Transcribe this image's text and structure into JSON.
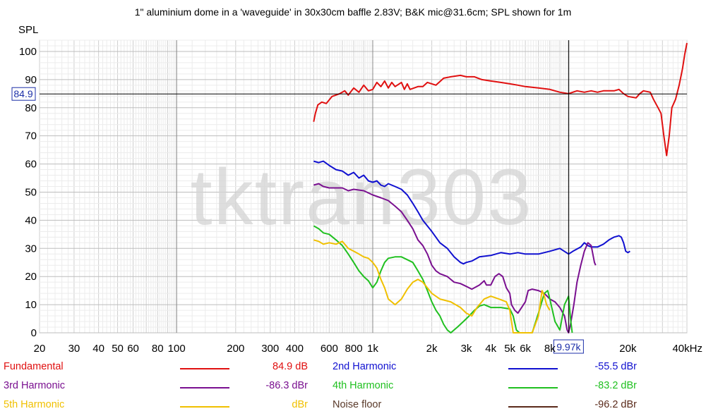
{
  "chart_data": {
    "type": "line",
    "title": "1\" aluminium dome in a 'waveguide' in 30x30cm baffle 2.83V; B&K mic@31.6cm; SPL shown for 1m",
    "ylabel": "SPL",
    "xlabel_unit": "kHz",
    "x_scale": "log",
    "xlim": [
      20,
      40000
    ],
    "ylim": [
      0,
      100
    ],
    "x_ticks": [
      {
        "v": 20,
        "t": "20"
      },
      {
        "v": 30,
        "t": "30"
      },
      {
        "v": 40,
        "t": "40"
      },
      {
        "v": 50,
        "t": "50"
      },
      {
        "v": 60,
        "t": "60"
      },
      {
        "v": 80,
        "t": "80"
      },
      {
        "v": 100,
        "t": "100"
      },
      {
        "v": 200,
        "t": "200"
      },
      {
        "v": 300,
        "t": "300"
      },
      {
        "v": 400,
        "t": "400"
      },
      {
        "v": 600,
        "t": "600"
      },
      {
        "v": 800,
        "t": "800"
      },
      {
        "v": 1000,
        "t": "1k"
      },
      {
        "v": 2000,
        "t": "2k"
      },
      {
        "v": 3000,
        "t": "3k"
      },
      {
        "v": 4000,
        "t": "4k"
      },
      {
        "v": 5000,
        "t": "5k"
      },
      {
        "v": 6000,
        "t": "6k"
      },
      {
        "v": 8000,
        "t": "8k"
      },
      {
        "v": 20000,
        "t": "20k"
      },
      {
        "v": 40000,
        "t": "40kHz"
      }
    ],
    "y_ticks": [
      0,
      10,
      20,
      30,
      40,
      50,
      60,
      70,
      80,
      90,
      100
    ],
    "grid": true,
    "watermark": "tktran303",
    "cursor": {
      "x": 9970,
      "y": 84.9,
      "x_label": "9.97k",
      "y_label": "84.9"
    },
    "series": [
      {
        "name": "Fundamental",
        "color": "#e01010",
        "value": "84.9 dB",
        "points": [
          [
            500,
            75
          ],
          [
            510,
            78
          ],
          [
            525,
            81
          ],
          [
            550,
            82
          ],
          [
            580,
            81.5
          ],
          [
            620,
            84
          ],
          [
            680,
            85
          ],
          [
            720,
            86
          ],
          [
            750,
            84.5
          ],
          [
            800,
            87
          ],
          [
            850,
            85.5
          ],
          [
            900,
            88
          ],
          [
            950,
            86
          ],
          [
            1000,
            86.5
          ],
          [
            1050,
            89
          ],
          [
            1100,
            87.5
          ],
          [
            1150,
            89.5
          ],
          [
            1200,
            87
          ],
          [
            1250,
            89
          ],
          [
            1300,
            87.5
          ],
          [
            1400,
            89
          ],
          [
            1450,
            86.5
          ],
          [
            1500,
            88.5
          ],
          [
            1550,
            86.5
          ],
          [
            1700,
            87.5
          ],
          [
            1800,
            87.5
          ],
          [
            1900,
            89
          ],
          [
            2100,
            88
          ],
          [
            2300,
            90.5
          ],
          [
            2500,
            91
          ],
          [
            2800,
            91.5
          ],
          [
            3000,
            91
          ],
          [
            3300,
            91
          ],
          [
            3600,
            90
          ],
          [
            4000,
            89.5
          ],
          [
            4500,
            89
          ],
          [
            5000,
            88.5
          ],
          [
            5500,
            88
          ],
          [
            6000,
            87.5
          ],
          [
            7000,
            87
          ],
          [
            8000,
            86.5
          ],
          [
            9000,
            85.5
          ],
          [
            9970,
            85
          ],
          [
            11000,
            86
          ],
          [
            12000,
            85.5
          ],
          [
            13000,
            86
          ],
          [
            14000,
            85.5
          ],
          [
            15000,
            86
          ],
          [
            17000,
            86
          ],
          [
            18000,
            86.5
          ],
          [
            19000,
            85
          ],
          [
            20000,
            84
          ],
          [
            22000,
            83.5
          ],
          [
            23000,
            85
          ],
          [
            24000,
            86
          ],
          [
            26000,
            85.5
          ],
          [
            27000,
            83
          ],
          [
            28500,
            80
          ],
          [
            29500,
            78
          ],
          [
            30500,
            70
          ],
          [
            31500,
            63
          ],
          [
            32500,
            70
          ],
          [
            33500,
            80
          ],
          [
            35000,
            83
          ],
          [
            36500,
            88
          ],
          [
            38000,
            94
          ],
          [
            39000,
            99
          ],
          [
            40000,
            103
          ]
        ]
      },
      {
        "name": "2nd Harmonic",
        "color": "#1010d0",
        "value": "-55.5 dBr",
        "points": [
          [
            500,
            61
          ],
          [
            530,
            60.5
          ],
          [
            560,
            61
          ],
          [
            600,
            59.5
          ],
          [
            650,
            58
          ],
          [
            700,
            57.5
          ],
          [
            750,
            56
          ],
          [
            800,
            57
          ],
          [
            850,
            55
          ],
          [
            900,
            56
          ],
          [
            950,
            54
          ],
          [
            1000,
            53.5
          ],
          [
            1050,
            54
          ],
          [
            1100,
            52.5
          ],
          [
            1150,
            52
          ],
          [
            1200,
            53
          ],
          [
            1300,
            52
          ],
          [
            1400,
            51
          ],
          [
            1500,
            49
          ],
          [
            1600,
            46
          ],
          [
            1700,
            43
          ],
          [
            1800,
            40
          ],
          [
            2000,
            36
          ],
          [
            2200,
            32
          ],
          [
            2400,
            30
          ],
          [
            2600,
            27
          ],
          [
            2800,
            25
          ],
          [
            2900,
            24.5
          ],
          [
            3000,
            25
          ],
          [
            3200,
            25.5
          ],
          [
            3500,
            27
          ],
          [
            4000,
            27.5
          ],
          [
            4500,
            28.5
          ],
          [
            5000,
            28
          ],
          [
            5500,
            28.5
          ],
          [
            6000,
            28
          ],
          [
            7000,
            28
          ],
          [
            8000,
            29
          ],
          [
            9000,
            30
          ],
          [
            9970,
            28
          ],
          [
            10500,
            29
          ],
          [
            11500,
            30.5
          ],
          [
            12000,
            32
          ],
          [
            12500,
            31
          ],
          [
            13000,
            30.5
          ],
          [
            14000,
            30.5
          ],
          [
            15000,
            31.5
          ],
          [
            16000,
            33
          ],
          [
            17000,
            34
          ],
          [
            18000,
            34.5
          ],
          [
            18500,
            34
          ],
          [
            19000,
            32
          ],
          [
            19500,
            29
          ],
          [
            20000,
            28.5
          ],
          [
            20500,
            29
          ]
        ]
      },
      {
        "name": "3rd Harmonic",
        "color": "#7a1090",
        "value": "-86.3 dBr",
        "points": [
          [
            500,
            52.5
          ],
          [
            530,
            53
          ],
          [
            560,
            52
          ],
          [
            600,
            51.5
          ],
          [
            700,
            51.5
          ],
          [
            750,
            50.5
          ],
          [
            800,
            51
          ],
          [
            900,
            50.5
          ],
          [
            1000,
            49
          ],
          [
            1100,
            48
          ],
          [
            1200,
            47
          ],
          [
            1300,
            45
          ],
          [
            1400,
            43
          ],
          [
            1500,
            40
          ],
          [
            1600,
            37
          ],
          [
            1700,
            33
          ],
          [
            1800,
            31
          ],
          [
            1900,
            28
          ],
          [
            2000,
            24
          ],
          [
            2100,
            22
          ],
          [
            2200,
            21
          ],
          [
            2400,
            20
          ],
          [
            2600,
            18
          ],
          [
            2800,
            17.5
          ],
          [
            3000,
            16.5
          ],
          [
            3200,
            15.5
          ],
          [
            3500,
            17
          ],
          [
            3700,
            18.5
          ],
          [
            3800,
            17
          ],
          [
            4000,
            17
          ],
          [
            4200,
            20
          ],
          [
            4400,
            21
          ],
          [
            4600,
            20
          ],
          [
            4800,
            16
          ],
          [
            5000,
            14
          ],
          [
            5100,
            10
          ],
          [
            5300,
            8
          ],
          [
            5500,
            7
          ],
          [
            6000,
            11
          ],
          [
            6200,
            15
          ],
          [
            6500,
            15.5
          ],
          [
            7000,
            15
          ],
          [
            7500,
            14
          ],
          [
            8000,
            12
          ],
          [
            8500,
            11
          ],
          [
            9000,
            9
          ],
          [
            9500,
            6
          ],
          [
            9800,
            1
          ],
          [
            9970,
            0
          ],
          [
            10200,
            3
          ],
          [
            10600,
            10
          ],
          [
            11000,
            18
          ],
          [
            11500,
            24
          ],
          [
            12000,
            29
          ],
          [
            12500,
            32
          ],
          [
            13000,
            31
          ],
          [
            13500,
            25
          ],
          [
            13700,
            24
          ]
        ]
      },
      {
        "name": "4th Harmonic",
        "color": "#20c020",
        "value": "-83.2 dBr",
        "points": [
          [
            500,
            38
          ],
          [
            530,
            37
          ],
          [
            560,
            35.5
          ],
          [
            600,
            35
          ],
          [
            650,
            33
          ],
          [
            700,
            31
          ],
          [
            750,
            28
          ],
          [
            800,
            25
          ],
          [
            850,
            22
          ],
          [
            900,
            20
          ],
          [
            950,
            18.5
          ],
          [
            1000,
            16
          ],
          [
            1050,
            18
          ],
          [
            1100,
            22
          ],
          [
            1150,
            25
          ],
          [
            1200,
            26.5
          ],
          [
            1300,
            27
          ],
          [
            1400,
            27
          ],
          [
            1500,
            26
          ],
          [
            1600,
            25
          ],
          [
            1700,
            22
          ],
          [
            1800,
            19
          ],
          [
            1900,
            15
          ],
          [
            2000,
            11
          ],
          [
            2100,
            8
          ],
          [
            2200,
            6
          ],
          [
            2300,
            3
          ],
          [
            2400,
            1
          ],
          [
            2500,
            0
          ],
          [
            2700,
            2
          ],
          [
            2900,
            4
          ],
          [
            3100,
            6
          ],
          [
            3300,
            8
          ],
          [
            3500,
            9.5
          ],
          [
            3700,
            10
          ],
          [
            4000,
            9
          ],
          [
            4500,
            9
          ],
          [
            5000,
            8.5
          ],
          [
            5200,
            6
          ],
          [
            5400,
            1
          ],
          [
            5600,
            0
          ],
          [
            6500,
            0
          ],
          [
            7000,
            7
          ],
          [
            7500,
            14
          ],
          [
            7800,
            15
          ],
          [
            8000,
            12
          ],
          [
            8500,
            4
          ],
          [
            9000,
            1
          ],
          [
            9500,
            10
          ],
          [
            9970,
            13
          ],
          [
            10200,
            5
          ],
          [
            10400,
            0
          ]
        ]
      },
      {
        "name": "5th Harmonic",
        "color": "#f0c000",
        "value": "dBr",
        "points": [
          [
            500,
            33
          ],
          [
            530,
            32.5
          ],
          [
            560,
            31.5
          ],
          [
            600,
            32
          ],
          [
            650,
            31.5
          ],
          [
            700,
            32.5
          ],
          [
            750,
            30
          ],
          [
            800,
            29
          ],
          [
            850,
            28
          ],
          [
            900,
            27
          ],
          [
            950,
            26.5
          ],
          [
            1000,
            25
          ],
          [
            1050,
            23
          ],
          [
            1100,
            19
          ],
          [
            1150,
            16
          ],
          [
            1200,
            12
          ],
          [
            1300,
            10
          ],
          [
            1400,
            12
          ],
          [
            1500,
            15.5
          ],
          [
            1600,
            18
          ],
          [
            1700,
            19
          ],
          [
            1800,
            18
          ],
          [
            1900,
            16
          ],
          [
            2000,
            14
          ],
          [
            2200,
            12
          ],
          [
            2500,
            11
          ],
          [
            2800,
            9
          ],
          [
            3000,
            7
          ],
          [
            3200,
            6
          ],
          [
            3400,
            9
          ],
          [
            3700,
            12
          ],
          [
            4000,
            13
          ],
          [
            4400,
            12
          ],
          [
            4800,
            11
          ],
          [
            5000,
            8
          ],
          [
            5100,
            4
          ],
          [
            5200,
            0
          ],
          [
            6500,
            0
          ],
          [
            7000,
            6
          ],
          [
            7300,
            15
          ],
          [
            7500,
            13
          ],
          [
            7700,
            10
          ],
          [
            8000,
            8
          ]
        ]
      },
      {
        "name": "Noise floor",
        "color": "#5a2a1a",
        "value": "-96.2 dBr",
        "points": []
      }
    ]
  }
}
